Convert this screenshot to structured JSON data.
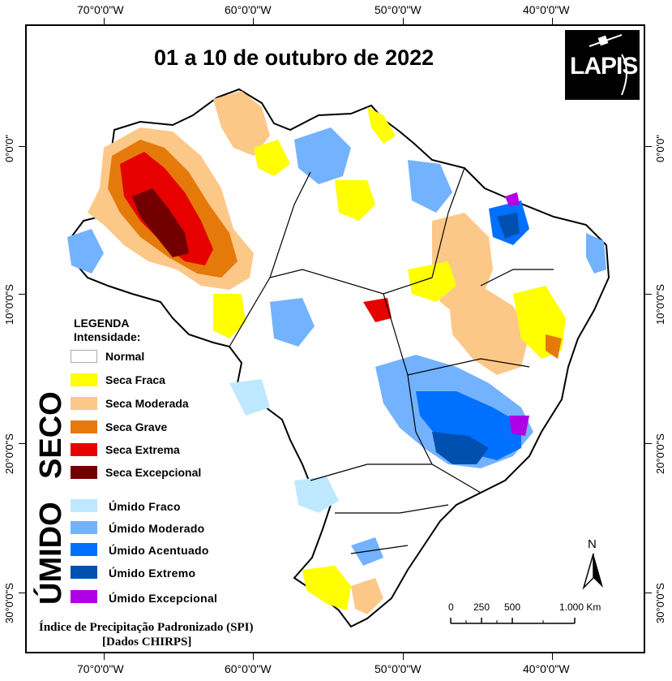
{
  "map": {
    "title": "01 a 10 de outubro de 2022",
    "logo_text": "LAPIS",
    "longitude_labels": [
      "70°0'0\"W",
      "60°0'0\"W",
      "50°0'0\"W",
      "40°0'0\"W"
    ],
    "latitude_labels": [
      "0°0'0\"",
      "10°0'0\"S",
      "20°0'0\"S",
      "30°0'0\"S"
    ]
  },
  "legend": {
    "title": "LEGENDA",
    "subtitle": "Intensidade:",
    "seco_label": "SECO",
    "umido_label": "ÚMIDO",
    "items": [
      {
        "label": "Normal",
        "color": "#ffffff"
      },
      {
        "label": "Seca Fraca",
        "color": "#ffff00"
      },
      {
        "label": "Seca Moderada",
        "color": "#fcc888"
      },
      {
        "label": "Seca Grave",
        "color": "#e57a0b"
      },
      {
        "label": "Seca Extrema",
        "color": "#e60000"
      },
      {
        "label": "Seca Excepcional",
        "color": "#720000"
      },
      {
        "label": "Úmido Fraco",
        "color": "#bee8ff"
      },
      {
        "label": "Úmido Moderado",
        "color": "#73b2ff"
      },
      {
        "label": "Úmido Acentuado",
        "color": "#0070ff"
      },
      {
        "label": "Úmido Extremo",
        "color": "#0050b0"
      },
      {
        "label": "Úmido Excepcional",
        "color": "#b000e6"
      }
    ]
  },
  "footnote": {
    "line1": "Índice de Precipitação Padronizado (SPI)",
    "line2": "[Dados CHIRPS]"
  },
  "scale_bar": {
    "labels": [
      "0",
      "250",
      "500",
      "1.000 Km"
    ]
  },
  "north_arrow": {
    "label": "N"
  }
}
